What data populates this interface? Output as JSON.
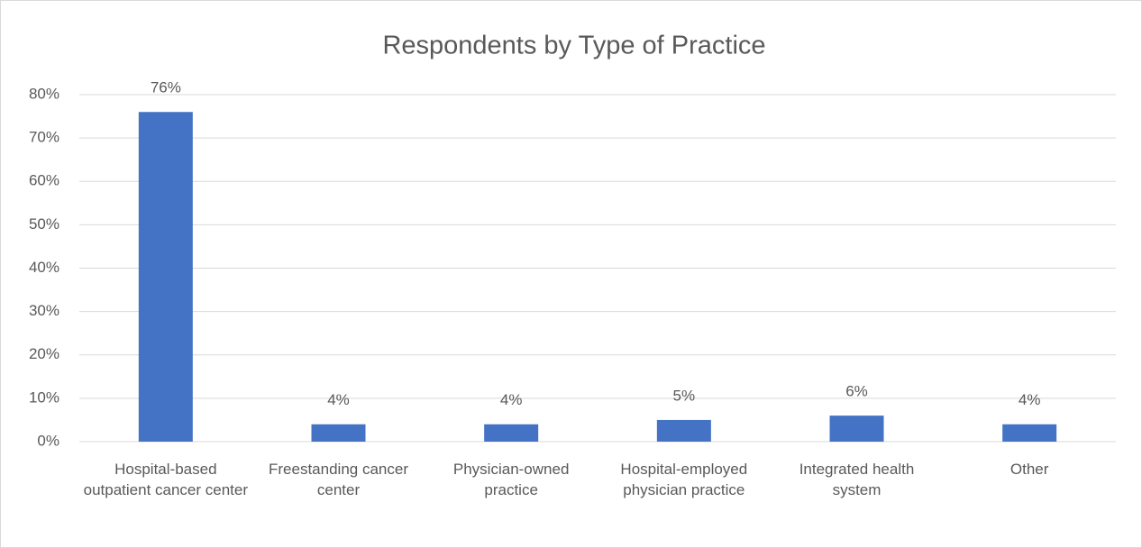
{
  "chart_data": {
    "type": "bar",
    "title": "Respondents by Type of Practice",
    "categories": [
      "Hospital-based outpatient cancer center",
      "Freestanding cancer center",
      "Physician-owned practice",
      "Hospital-employed physician practice",
      "Integrated health system",
      "Other"
    ],
    "values": [
      76,
      4,
      4,
      5,
      6,
      4
    ],
    "value_labels": [
      "76%",
      "4%",
      "4%",
      "5%",
      "6%",
      "4%"
    ],
    "color": "#4472c4",
    "ylim": [
      0,
      80
    ],
    "yticks": [
      {
        "value": 0,
        "label": "0%"
      },
      {
        "value": 10,
        "label": "10%"
      },
      {
        "value": 20,
        "label": "20%"
      },
      {
        "value": 30,
        "label": "30%"
      },
      {
        "value": 40,
        "label": "40%"
      },
      {
        "value": 50,
        "label": "50%"
      },
      {
        "value": 60,
        "label": "60%"
      },
      {
        "value": 70,
        "label": "70%"
      },
      {
        "value": 80,
        "label": "80%"
      }
    ],
    "grid": true
  }
}
